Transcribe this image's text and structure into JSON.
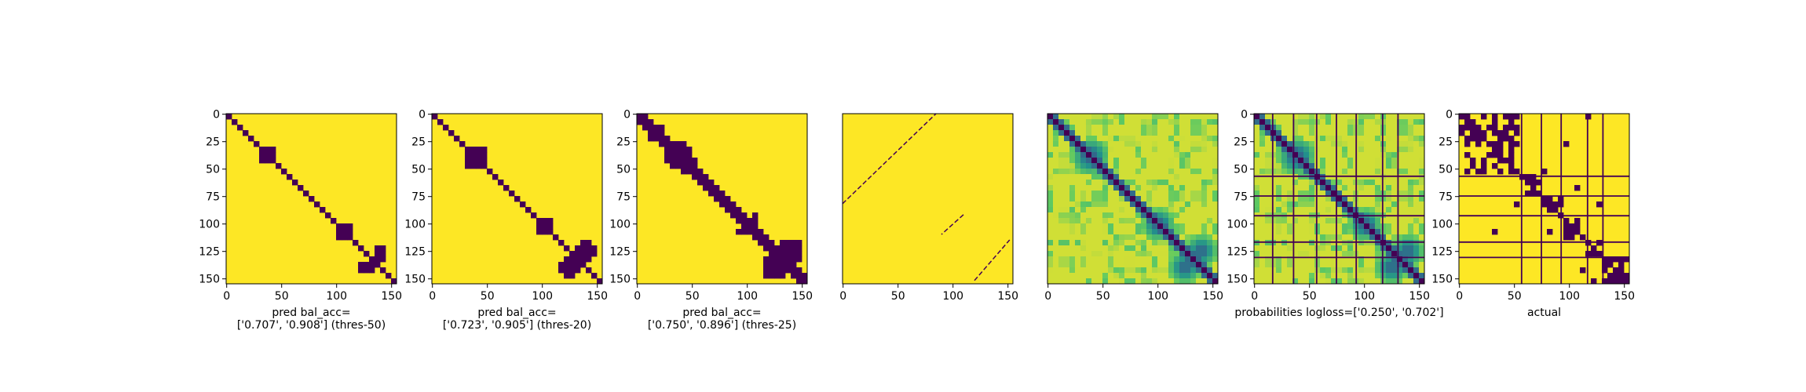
{
  "chart_data": [
    {
      "type": "heatmap",
      "name": "pred-thres-50",
      "kind": "binary",
      "size": 155,
      "colormap": "viridis",
      "title_lines": [
        "pred bal_acc=",
        "['0.707', '0.908'] (thres-50)"
      ],
      "xticks": [
        0,
        50,
        100,
        150
      ],
      "yticks": [
        0,
        25,
        50,
        75,
        100,
        125,
        150
      ],
      "width": 3,
      "blobs": [
        [
          40,
          38,
          10
        ],
        [
          105,
          108,
          7
        ],
        [
          140,
          128,
          7
        ]
      ]
    },
    {
      "type": "heatmap",
      "name": "pred-thres-20",
      "kind": "binary",
      "size": 155,
      "colormap": "viridis",
      "title_lines": [
        "pred bal_acc=",
        "['0.723', '0.905'] (thres-20)"
      ],
      "xticks": [
        0,
        50,
        100,
        150
      ],
      "yticks": [
        0,
        25,
        50,
        75,
        100,
        125,
        150
      ],
      "width": 4,
      "blobs": [
        [
          40,
          38,
          13
        ],
        [
          100,
          102,
          9
        ],
        [
          140,
          125,
          10
        ]
      ]
    },
    {
      "type": "heatmap",
      "name": "pred-thres-25",
      "kind": "binary",
      "size": 155,
      "colormap": "viridis",
      "title_lines": [
        "pred bal_acc=",
        "['0.750', '0.896'] (thres-25)"
      ],
      "xticks": [
        0,
        50,
        100,
        150
      ],
      "yticks": [
        0,
        25,
        50,
        75,
        100,
        125,
        150
      ],
      "width": 5,
      "blobs": [
        [
          40,
          38,
          15
        ],
        [
          100,
          102,
          12
        ],
        [
          140,
          125,
          13
        ],
        [
          15,
          20,
          6
        ]
      ]
    },
    {
      "type": "heatmap",
      "name": "sparse-lines",
      "kind": "lines",
      "size": 155,
      "colormap": "viridis",
      "title_lines": [],
      "xticks": [
        0,
        50,
        100,
        150
      ],
      "yticks": [],
      "segments": [
        [
          0,
          82,
          85,
          0
        ],
        [
          110,
          92,
          90,
          110
        ],
        [
          120,
          152,
          152,
          115
        ]
      ]
    },
    {
      "type": "heatmap",
      "name": "probabilities",
      "kind": "prob",
      "size": 155,
      "colormap": "viridis",
      "title_lines": [],
      "xticks": [
        0,
        50,
        100,
        150
      ],
      "yticks": [],
      "blobs": [
        [
          40,
          38,
          13
        ],
        [
          100,
          102,
          11
        ],
        [
          140,
          125,
          12
        ]
      ]
    },
    {
      "type": "heatmap",
      "name": "probabilities-grid",
      "kind": "prob-grid",
      "size": 155,
      "colormap": "viridis",
      "title_lines": [
        "probabilities logloss=['0.250', '0.702']"
      ],
      "xticks": [
        0,
        50,
        100,
        150
      ],
      "yticks": [
        0,
        25,
        50,
        75,
        100,
        125,
        150
      ],
      "blobs": [
        [
          40,
          38,
          13
        ],
        [
          100,
          102,
          11
        ],
        [
          140,
          125,
          12
        ]
      ],
      "boundaries": [
        57,
        75,
        93,
        117,
        131
      ]
    },
    {
      "type": "heatmap",
      "name": "actual",
      "kind": "actual",
      "size": 155,
      "colormap": "viridis",
      "title_lines": [
        "actual"
      ],
      "xticks": [
        0,
        50,
        100,
        150
      ],
      "yticks": [
        0,
        25,
        50,
        75,
        100,
        125,
        150
      ],
      "boundaries": [
        57,
        75,
        93,
        117,
        131
      ]
    }
  ],
  "colors": {
    "low": "#440154",
    "high": "#fde725",
    "mid_green": "#b5de2b",
    "mid_teal": "#21918c",
    "mid_blue": "#3b528b",
    "axis": "#000000"
  }
}
